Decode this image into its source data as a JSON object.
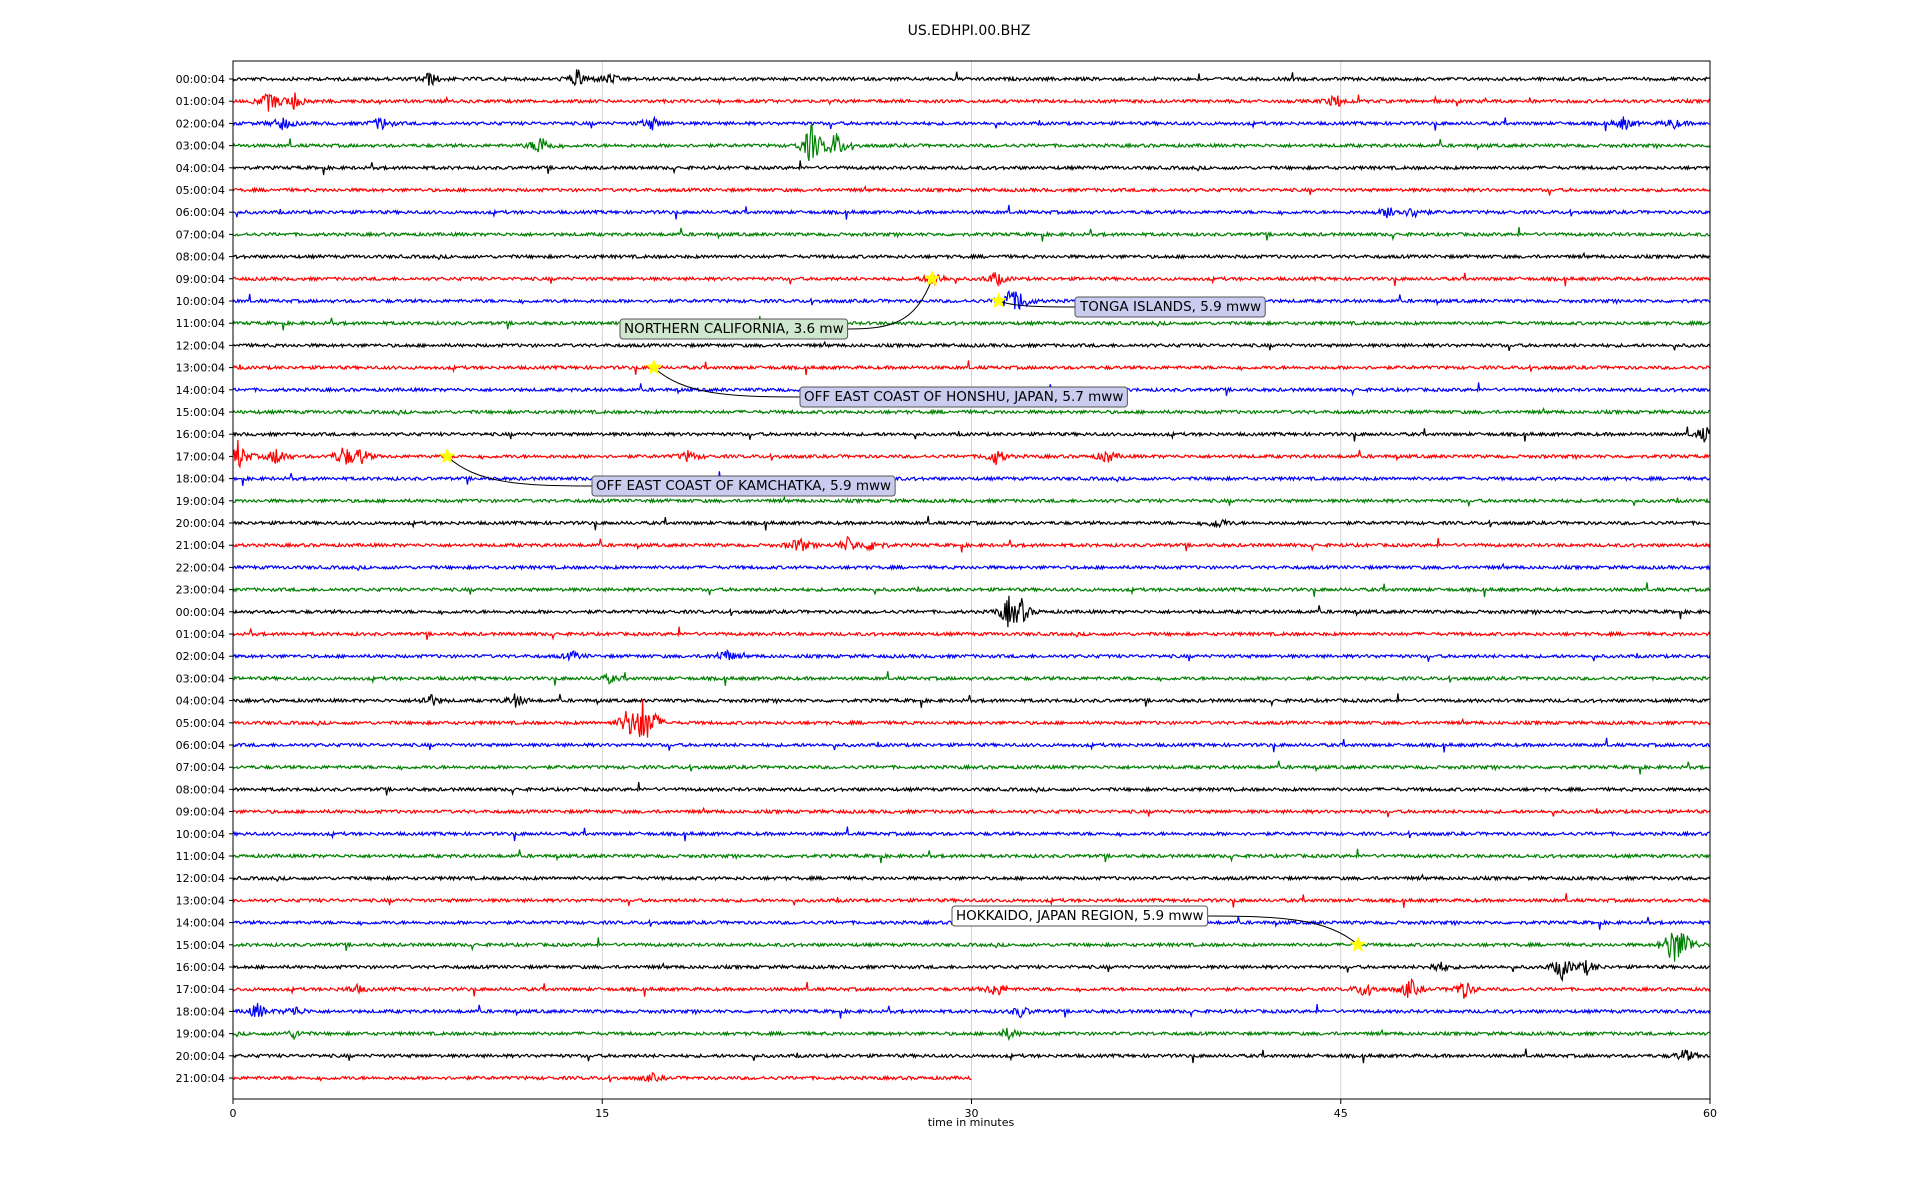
{
  "chart_data": {
    "type": "line",
    "title": "US.EDHPI.00.BHZ",
    "xlabel": "time in minutes",
    "ylabel": "",
    "xlim": [
      0,
      60
    ],
    "x_ticks": [
      "0",
      "15",
      "30",
      "45",
      "60"
    ],
    "grid": "vertical-at-15-min",
    "row_colors": [
      "#000000",
      "#ff0000",
      "#0000ff",
      "#008000"
    ],
    "marker_color": "#ffff00",
    "rows": [
      {
        "label": "00:00:04",
        "bursts": [
          [
            8,
            0.5
          ],
          [
            14,
            0.7
          ],
          [
            15.3,
            0.4
          ]
        ]
      },
      {
        "label": "01:00:04",
        "bursts": [
          [
            1.5,
            0.8
          ],
          [
            2.5,
            0.6
          ],
          [
            44.8,
            0.5
          ]
        ]
      },
      {
        "label": "02:00:04",
        "bursts": [
          [
            2,
            0.5
          ],
          [
            6,
            0.5
          ],
          [
            17,
            0.5
          ],
          [
            56.5,
            0.5
          ],
          [
            58.5,
            0.4
          ]
        ]
      },
      {
        "label": "03:00:04",
        "bursts": [
          [
            12.5,
            0.8
          ],
          [
            23.5,
            1.6
          ],
          [
            24.5,
            1.0
          ]
        ]
      },
      {
        "label": "04:00:04",
        "bursts": []
      },
      {
        "label": "05:00:04",
        "bursts": []
      },
      {
        "label": "06:00:04",
        "bursts": [
          [
            47,
            0.5
          ],
          [
            48,
            0.4
          ]
        ]
      },
      {
        "label": "07:00:04",
        "bursts": []
      },
      {
        "label": "08:00:04",
        "bursts": []
      },
      {
        "label": "09:00:04",
        "bursts": [
          [
            28.5,
            0.6
          ],
          [
            31,
            0.5
          ]
        ]
      },
      {
        "label": "10:00:04",
        "bursts": [
          [
            31.5,
            0.8
          ],
          [
            32,
            0.7
          ]
        ]
      },
      {
        "label": "11:00:04",
        "bursts": []
      },
      {
        "label": "12:00:04",
        "bursts": []
      },
      {
        "label": "13:00:04",
        "bursts": []
      },
      {
        "label": "14:00:04",
        "bursts": []
      },
      {
        "label": "15:00:04",
        "bursts": []
      },
      {
        "label": "16:00:04",
        "bursts": [
          [
            59.8,
            0.6
          ]
        ]
      },
      {
        "label": "17:00:04",
        "bursts": [
          [
            0.2,
            1.2
          ],
          [
            1.8,
            0.7
          ],
          [
            4.5,
            0.8
          ],
          [
            5.2,
            0.6
          ],
          [
            18.5,
            0.4
          ],
          [
            31,
            0.6
          ],
          [
            35.5,
            0.5
          ]
        ]
      },
      {
        "label": "18:00:04",
        "bursts": []
      },
      {
        "label": "19:00:04",
        "bursts": []
      },
      {
        "label": "20:00:04",
        "bursts": [
          [
            40,
            0.4
          ]
        ]
      },
      {
        "label": "21:00:04",
        "bursts": [
          [
            23,
            0.6
          ],
          [
            25,
            0.6
          ],
          [
            26,
            0.5
          ]
        ]
      },
      {
        "label": "22:00:04",
        "bursts": []
      },
      {
        "label": "23:00:04",
        "bursts": []
      },
      {
        "label": "00:00:04",
        "bursts": [
          [
            31.5,
            1.0
          ],
          [
            32,
            0.9
          ]
        ]
      },
      {
        "label": "01:00:04",
        "bursts": []
      },
      {
        "label": "02:00:04",
        "bursts": [
          [
            20,
            0.5
          ],
          [
            13.8,
            0.3
          ]
        ]
      },
      {
        "label": "03:00:04",
        "bursts": [
          [
            15.3,
            0.3
          ]
        ]
      },
      {
        "label": "04:00:04",
        "bursts": [
          [
            8,
            0.5
          ],
          [
            11.5,
            0.5
          ]
        ]
      },
      {
        "label": "05:00:04",
        "bursts": [
          [
            16,
            0.9
          ],
          [
            16.6,
            1.6
          ],
          [
            17,
            0.8
          ]
        ]
      },
      {
        "label": "06:00:04",
        "bursts": []
      },
      {
        "label": "07:00:04",
        "bursts": []
      },
      {
        "label": "08:00:04",
        "bursts": []
      },
      {
        "label": "09:00:04",
        "bursts": []
      },
      {
        "label": "10:00:04",
        "bursts": []
      },
      {
        "label": "11:00:04",
        "bursts": []
      },
      {
        "label": "12:00:04",
        "bursts": []
      },
      {
        "label": "13:00:04",
        "bursts": []
      },
      {
        "label": "14:00:04",
        "bursts": []
      },
      {
        "label": "15:00:04",
        "bursts": [
          [
            58.5,
            1.5
          ],
          [
            59,
            0.9
          ]
        ]
      },
      {
        "label": "16:00:04",
        "bursts": [
          [
            54,
            0.9
          ],
          [
            55,
            0.5
          ],
          [
            49,
            0.4
          ]
        ]
      },
      {
        "label": "17:00:04",
        "bursts": [
          [
            31,
            0.6
          ],
          [
            46,
            0.6
          ],
          [
            47.8,
            0.8
          ],
          [
            50,
            0.7
          ],
          [
            5,
            0.3
          ]
        ]
      },
      {
        "label": "18:00:04",
        "bursts": [
          [
            1,
            0.6
          ],
          [
            2.5,
            0.4
          ],
          [
            32,
            0.4
          ]
        ]
      },
      {
        "label": "19:00:04",
        "bursts": [
          [
            2.5,
            0.3
          ],
          [
            31.5,
            0.4
          ]
        ]
      },
      {
        "label": "20:00:04",
        "bursts": [
          [
            59,
            0.5
          ]
        ]
      },
      {
        "label": "21:00:04",
        "bursts": [
          [
            17,
            0.3
          ]
        ],
        "end": 30
      }
    ],
    "events": [
      {
        "label": "TONGA ISLANDS, 5.9 mww",
        "row": 10,
        "minute": 31.1
      },
      {
        "label": "NORTHERN CALIFORNIA, 3.6 mw",
        "row": 9,
        "minute": 28.4
      },
      {
        "label": "OFF EAST COAST OF HONSHU, JAPAN, 5.7 mww",
        "row": 13,
        "minute": 17.1
      },
      {
        "label": "OFF EAST COAST OF KAMCHATKA, 5.9 mww",
        "row": 17,
        "minute": 8.7
      },
      {
        "label": "HOKKAIDO, JAPAN REGION, 5.9 mww",
        "row": 39,
        "minute": 45.7
      }
    ]
  }
}
